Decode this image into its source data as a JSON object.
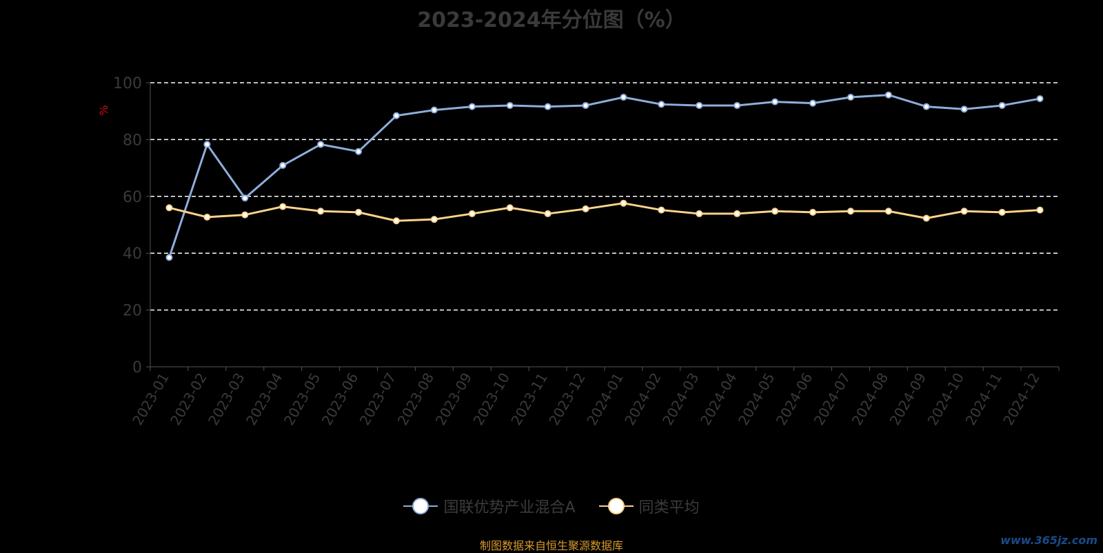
{
  "chart_data": {
    "type": "line",
    "title": "2023-2024年分位图（%）",
    "ylabel": "%",
    "xlabel": "",
    "ylim": [
      0,
      100
    ],
    "yticks": [
      0,
      20,
      40,
      60,
      80,
      100
    ],
    "grid": true,
    "legend_position": "bottom",
    "categories": [
      "2023-01",
      "2023-02",
      "2023-03",
      "2023-04",
      "2023-05",
      "2023-06",
      "2023-07",
      "2023-08",
      "2023-09",
      "2023-10",
      "2023-11",
      "2023-12",
      "2024-01",
      "2024-02",
      "2024-03",
      "2024-04",
      "2024-05",
      "2024-06",
      "2024-07",
      "2024-08",
      "2024-09",
      "2024-10",
      "2024-11",
      "2024-12"
    ],
    "series": [
      {
        "name": "国联优势产业混合A",
        "color": "#8eaedb",
        "values": [
          38.5,
          78.3,
          59.4,
          70.9,
          78.3,
          75.8,
          88.4,
          90.4,
          91.6,
          92.0,
          91.6,
          92.0,
          94.9,
          92.4,
          92.0,
          92.0,
          93.3,
          92.8,
          94.9,
          95.7,
          91.6,
          90.7,
          92.0,
          94.4
        ]
      },
      {
        "name": "同类平均",
        "color": "#fbd38a",
        "values": [
          56.0,
          52.7,
          53.5,
          56.4,
          54.8,
          54.4,
          51.4,
          51.9,
          53.9,
          56.0,
          53.9,
          55.6,
          57.6,
          55.2,
          53.9,
          53.9,
          54.8,
          54.4,
          54.8,
          54.8,
          52.3,
          54.8,
          54.4,
          55.2
        ]
      }
    ]
  },
  "source_note": "制图数据来自恒生聚源数据库",
  "watermark": "www.365jz.com"
}
